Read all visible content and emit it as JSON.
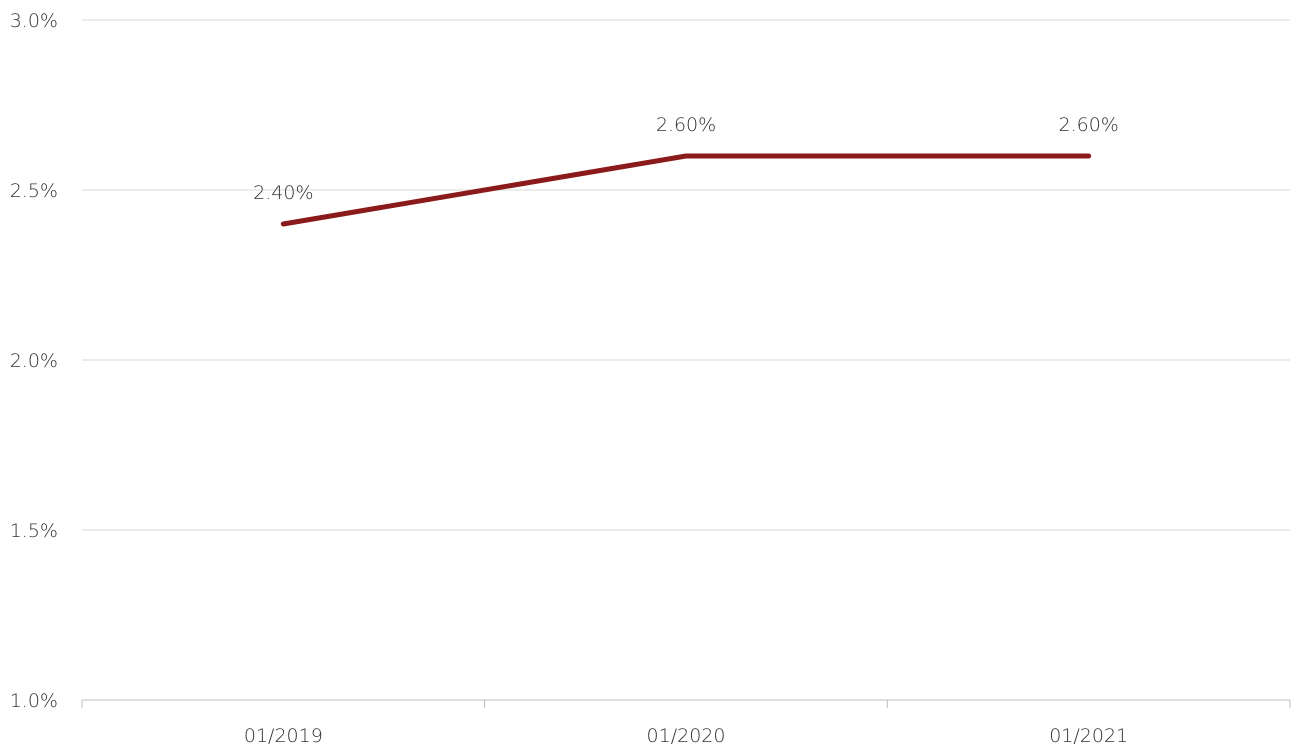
{
  "chart_data": {
    "type": "line",
    "categories": [
      "01/2019",
      "01/2020",
      "01/2021"
    ],
    "series": [
      {
        "values": [
          2.4,
          2.6,
          2.6
        ],
        "labels": [
          "2.40%",
          "2.60%",
          "2.60%"
        ]
      }
    ],
    "ylim": [
      1.0,
      3.0
    ],
    "y_ticks": [
      1.0,
      1.5,
      2.0,
      2.5,
      3.0
    ],
    "y_tick_labels": [
      "1.0%",
      "1.5%",
      "2.0%",
      "2.5%",
      "3.0%"
    ],
    "grid": true,
    "legend": "none",
    "colors": {
      "line": "#8B1A1A",
      "grid": "#D9D9D9",
      "axis": "#BFBFBF",
      "text": "#333333"
    }
  }
}
